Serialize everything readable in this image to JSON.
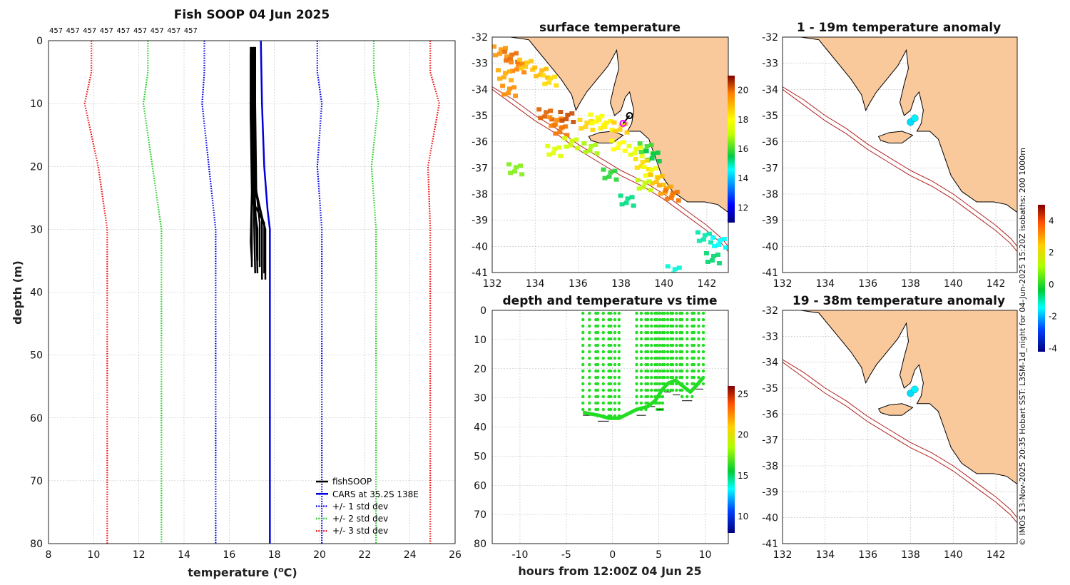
{
  "credit": "© IMOS 13-Nov-2025 20:35 Hobart SST: L3SM-1d_night for 04-Jun-2025 15:20Z isobaths: 200  1000m",
  "colors": {
    "fishsoop": "#000000",
    "cars": "#0000dd",
    "std1": "#0000dd",
    "std2": "#22cc22",
    "std3": "#ee1111",
    "land": "#f9c89b",
    "isobath": "#b22222"
  },
  "chart_data": [
    {
      "id": "profile",
      "type": "line",
      "title": "Fish SOOP 04 Jun 2025",
      "id_labels": [
        "457",
        "457",
        "457",
        "457",
        "457",
        "457",
        "457",
        "457",
        "457"
      ],
      "xlabel_main": "temperature (",
      "xlabel_sup": "o",
      "xlabel_end": "C)",
      "ylabel": "depth (m)",
      "xlim": [
        8,
        26
      ],
      "ylim": [
        0,
        80
      ],
      "y_reversed": true,
      "xticks": [
        8,
        10,
        12,
        14,
        16,
        18,
        20,
        22,
        24,
        26
      ],
      "yticks": [
        0,
        10,
        20,
        30,
        40,
        50,
        60,
        70,
        80
      ],
      "grid": true,
      "legend_position": "bottom-right",
      "legend": [
        "fishSOOP",
        "CARS at 35.2S 138E",
        "+/- 1 std dev",
        "+/- 2 std dev",
        "+/- 3 std dev"
      ],
      "cars": {
        "temp": [
          17.4,
          17.45,
          17.55,
          17.7,
          17.8,
          17.8
        ],
        "depth": [
          0,
          10,
          20,
          27,
          30,
          80
        ]
      },
      "std": [
        {
          "name": "-3",
          "temp": [
            9.9,
            9.9,
            9.6,
            10.2,
            10.6,
            10.6
          ],
          "depth": [
            0,
            5,
            10,
            20,
            30,
            80
          ]
        },
        {
          "name": "-2",
          "temp": [
            12.4,
            12.4,
            12.2,
            12.6,
            13.0,
            13.0
          ],
          "depth": [
            0,
            5,
            10,
            20,
            30,
            80
          ]
        },
        {
          "name": "-1",
          "temp": [
            14.9,
            14.9,
            14.8,
            15.1,
            15.4,
            15.4
          ],
          "depth": [
            0,
            5,
            10,
            20,
            30,
            80
          ]
        },
        {
          "name": "+1",
          "temp": [
            19.9,
            19.9,
            20.1,
            19.9,
            20.1,
            20.1
          ],
          "depth": [
            0,
            5,
            10,
            20,
            30,
            80
          ]
        },
        {
          "name": "+2",
          "temp": [
            22.4,
            22.4,
            22.6,
            22.3,
            22.5,
            22.5
          ],
          "depth": [
            0,
            5,
            10,
            20,
            30,
            80
          ]
        },
        {
          "name": "+3",
          "temp": [
            24.9,
            24.9,
            25.3,
            24.8,
            24.9,
            24.9
          ],
          "depth": [
            0,
            5,
            10,
            20,
            30,
            80
          ]
        }
      ],
      "fishsoop": [
        {
          "temp": [
            17.0,
            17.0,
            17.05,
            17.0,
            17.0
          ],
          "depth": [
            1,
            10,
            20,
            28,
            36
          ]
        },
        {
          "temp": [
            16.95,
            16.95,
            17.0,
            16.95,
            17.0
          ],
          "depth": [
            2,
            12,
            24,
            32,
            35
          ]
        },
        {
          "temp": [
            17.05,
            17.05,
            17.1,
            17.1,
            17.15
          ],
          "depth": [
            1,
            10,
            20,
            29,
            37
          ]
        },
        {
          "temp": [
            17.1,
            17.1,
            17.1,
            17.2,
            17.25
          ],
          "depth": [
            1,
            12,
            22,
            30,
            37
          ]
        },
        {
          "temp": [
            17.15,
            17.15,
            17.2,
            17.45,
            17.45
          ],
          "depth": [
            1,
            10,
            24,
            28,
            38
          ]
        },
        {
          "temp": [
            17.05,
            17.05,
            17.1,
            17.55,
            17.55
          ],
          "depth": [
            2,
            14,
            26,
            29,
            37
          ]
        },
        {
          "temp": [
            17.1,
            17.1,
            17.15,
            17.35,
            17.35
          ],
          "depth": [
            1,
            10,
            22,
            29,
            36
          ]
        },
        {
          "temp": [
            16.95,
            16.95,
            17.05,
            17.25,
            17.25
          ],
          "depth": [
            1,
            12,
            25,
            30,
            35
          ]
        },
        {
          "temp": [
            17.0,
            17.0,
            17.0,
            17.6,
            17.6
          ],
          "depth": [
            2,
            10,
            22,
            30,
            38
          ]
        }
      ]
    },
    {
      "id": "sst_map",
      "type": "heatmap",
      "title": "surface temperature",
      "xlim": [
        132,
        143
      ],
      "ylim": [
        -41,
        -32
      ],
      "xticks": [
        132,
        134,
        136,
        138,
        140,
        142
      ],
      "yticks": [
        -32,
        -33,
        -34,
        -35,
        -36,
        -37,
        -38,
        -39,
        -40,
        -41
      ],
      "colorbar": {
        "min": 11,
        "max": 21,
        "ticks": [
          12,
          14,
          16,
          18,
          20
        ]
      },
      "sst_points": [
        {
          "lon": 132.3,
          "lat": -32.5,
          "t": 19.5
        },
        {
          "lon": 132.8,
          "lat": -32.7,
          "t": 20.0
        },
        {
          "lon": 133.1,
          "lat": -33.1,
          "t": 19.8
        },
        {
          "lon": 132.5,
          "lat": -33.4,
          "t": 19.2
        },
        {
          "lon": 133.5,
          "lat": -33.0,
          "t": 18.8
        },
        {
          "lon": 134.2,
          "lat": -33.3,
          "t": 19.0
        },
        {
          "lon": 134.6,
          "lat": -33.6,
          "t": 18.5
        },
        {
          "lon": 132.7,
          "lat": -34.0,
          "t": 19.6
        },
        {
          "lon": 134.4,
          "lat": -34.9,
          "t": 20.1
        },
        {
          "lon": 134.9,
          "lat": -35.2,
          "t": 19.7
        },
        {
          "lon": 135.4,
          "lat": -35.0,
          "t": 20.3
        },
        {
          "lon": 135.1,
          "lat": -35.5,
          "t": 19.9
        },
        {
          "lon": 136.3,
          "lat": -35.3,
          "t": 18.6
        },
        {
          "lon": 136.8,
          "lat": -35.1,
          "t": 17.9
        },
        {
          "lon": 137.2,
          "lat": -35.3,
          "t": 18.2
        },
        {
          "lon": 134.8,
          "lat": -36.3,
          "t": 17.5
        },
        {
          "lon": 135.6,
          "lat": -36.0,
          "t": 17.2
        },
        {
          "lon": 136.5,
          "lat": -36.2,
          "t": 16.8
        },
        {
          "lon": 137.8,
          "lat": -36.1,
          "t": 18.0
        },
        {
          "lon": 138.6,
          "lat": -36.3,
          "t": 17.6
        },
        {
          "lon": 139.1,
          "lat": -36.2,
          "t": 16.0
        },
        {
          "lon": 139.4,
          "lat": -36.5,
          "t": 15.5
        },
        {
          "lon": 138.9,
          "lat": -36.8,
          "t": 18.5
        },
        {
          "lon": 139.3,
          "lat": -37.1,
          "t": 17.8
        },
        {
          "lon": 139.6,
          "lat": -37.4,
          "t": 18.9
        },
        {
          "lon": 139.0,
          "lat": -37.6,
          "t": 17.0
        },
        {
          "lon": 140.0,
          "lat": -37.8,
          "t": 19.3
        },
        {
          "lon": 140.3,
          "lat": -38.0,
          "t": 19.9
        },
        {
          "lon": 133.0,
          "lat": -37.0,
          "t": 16.5
        },
        {
          "lon": 137.4,
          "lat": -37.2,
          "t": 15.8
        },
        {
          "lon": 138.2,
          "lat": -38.2,
          "t": 15.2
        },
        {
          "lon": 141.8,
          "lat": -39.6,
          "t": 15.0
        },
        {
          "lon": 142.5,
          "lat": -39.8,
          "t": 14.6
        },
        {
          "lon": 142.2,
          "lat": -40.4,
          "t": 15.3
        },
        {
          "lon": 140.4,
          "lat": -40.9,
          "t": 14.8
        },
        {
          "lon": 137.9,
          "lat": -35.4,
          "t": 18.7
        }
      ],
      "vessel_track": [
        {
          "lon": 138.1,
          "lat": -35.3
        },
        {
          "lon": 138.4,
          "lat": -35.0
        }
      ]
    },
    {
      "id": "time_series",
      "type": "scatter",
      "title": "depth and temperature vs time",
      "xlabel": "hours from 12:00Z 04 Jun 25",
      "xlim": [
        -13,
        12.5
      ],
      "ylim": [
        0,
        80
      ],
      "y_reversed": true,
      "xticks": [
        -10,
        -5,
        0,
        5,
        10
      ],
      "yticks": [
        0,
        10,
        20,
        30,
        40,
        50,
        60,
        70,
        80
      ],
      "colorbar": {
        "min": 8,
        "max": 26,
        "ticks": [
          10,
          15,
          20,
          25
        ]
      },
      "casts": [
        {
          "start": -3.2,
          "end": -1.8,
          "max_depth": 36
        },
        {
          "start": -1.6,
          "end": -0.4,
          "max_depth": 38
        },
        {
          "start": -0.2,
          "end": 0.7,
          "max_depth": 37
        },
        {
          "start": 2.6,
          "end": 3.6,
          "max_depth": 36
        },
        {
          "start": 3.8,
          "end": 4.6,
          "max_depth": 33
        },
        {
          "start": 4.8,
          "end": 5.4,
          "max_depth": 34
        },
        {
          "start": 5.6,
          "end": 6.3,
          "max_depth": 28
        },
        {
          "start": 6.5,
          "end": 7.3,
          "max_depth": 29
        },
        {
          "start": 7.5,
          "end": 8.6,
          "max_depth": 31
        },
        {
          "start": 8.8,
          "end": 9.8,
          "max_depth": 27
        }
      ],
      "trail": {
        "hours": [
          -3.2,
          -1.5,
          -0.4,
          0.7,
          2.6,
          3.8,
          4.6,
          5.4,
          6.0,
          6.8,
          7.6,
          8.4,
          9.0,
          9.8
        ],
        "depth": [
          35,
          36,
          37,
          37,
          34,
          33,
          31,
          27,
          25,
          24,
          26,
          28,
          26,
          23
        ]
      }
    },
    {
      "id": "anom_1",
      "type": "scatter",
      "title": "1 - 19m temperature anomaly",
      "xlim": [
        132,
        143
      ],
      "ylim": [
        -41,
        -32
      ],
      "xticks": [
        132,
        134,
        136,
        138,
        140,
        142
      ],
      "yticks": [
        -32,
        -33,
        -34,
        -35,
        -36,
        -37,
        -38,
        -39,
        -40,
        -41
      ],
      "points": [
        {
          "lon": 138.0,
          "lat": -35.25,
          "anom": -1.2
        },
        {
          "lon": 138.2,
          "lat": -35.1,
          "anom": -1.0
        }
      ]
    },
    {
      "id": "anom_2",
      "type": "scatter",
      "title": "19 - 38m temperature anomaly",
      "xlim": [
        132,
        143
      ],
      "ylim": [
        -41,
        -32
      ],
      "xticks": [
        132,
        134,
        136,
        138,
        140,
        142
      ],
      "yticks": [
        -32,
        -33,
        -34,
        -35,
        -36,
        -37,
        -38,
        -39,
        -40,
        -41
      ],
      "points": [
        {
          "lon": 138.0,
          "lat": -35.2,
          "anom": -1.2
        },
        {
          "lon": 138.2,
          "lat": -35.05,
          "anom": -1.0
        }
      ],
      "colorbar": {
        "min": -4.2,
        "max": 5,
        "ticks": [
          -4,
          -2,
          0,
          2,
          4
        ]
      }
    }
  ]
}
